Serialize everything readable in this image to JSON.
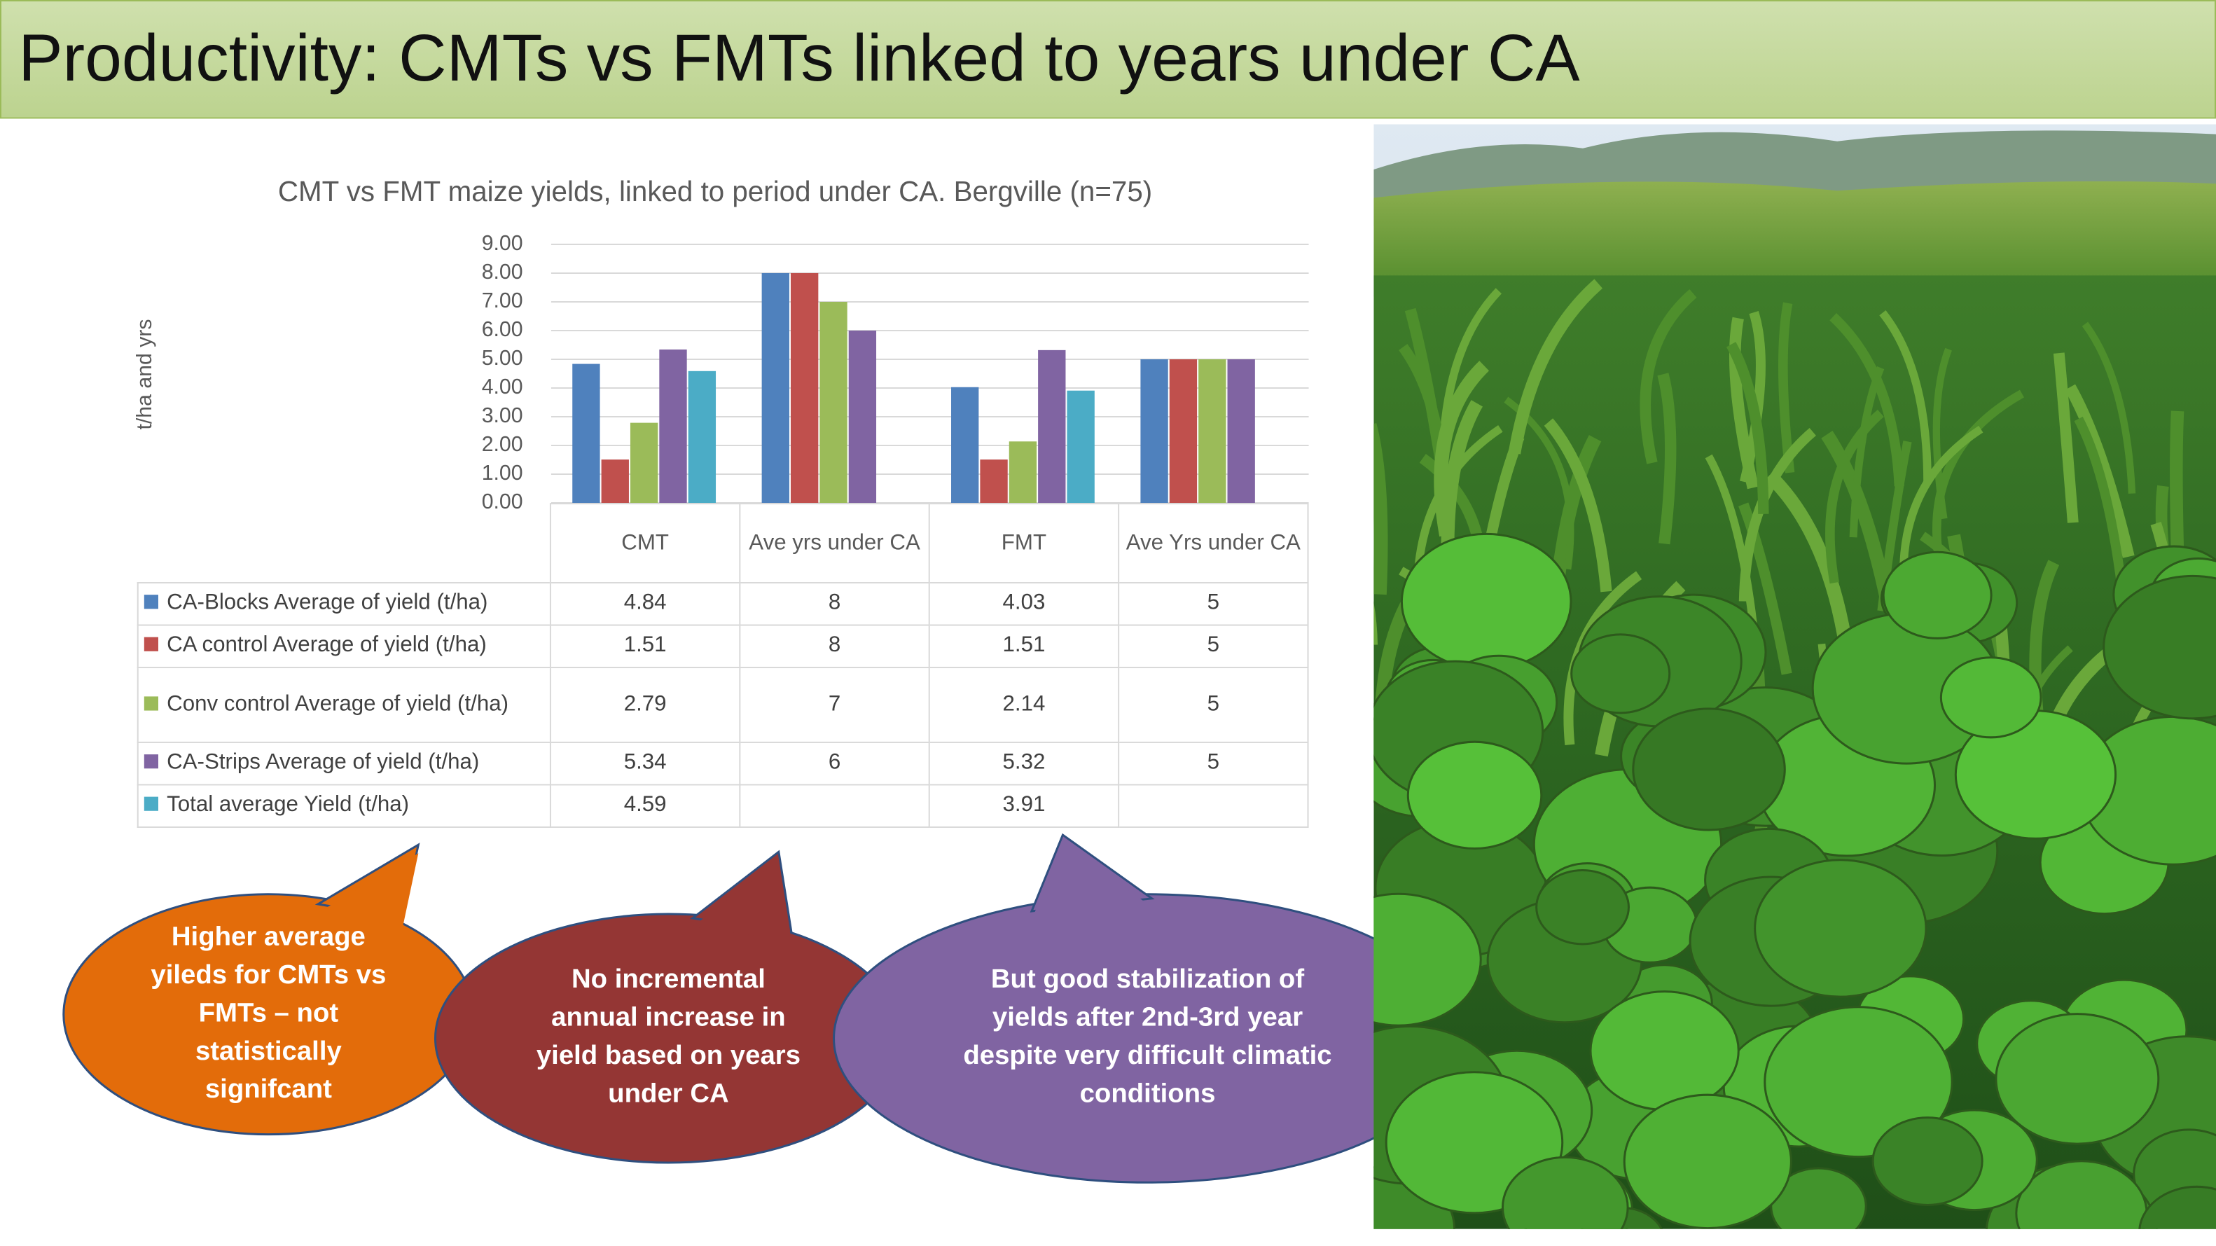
{
  "slide": {
    "title": "Productivity: CMTs vs FMTs linked to years under CA"
  },
  "chart_data": {
    "type": "bar",
    "title": "CMT vs FMT maize yields, linked to period under CA. Bergville (n=75)",
    "y_label": "t/ha and yrs",
    "categories": [
      "CMT",
      "Ave yrs under CA",
      "FMT",
      "Ave Yrs under CA"
    ],
    "series": [
      {
        "name": "CA-Blocks Average of yield (t/ha)",
        "color": "#4f81bd",
        "values": [
          4.84,
          8,
          4.03,
          5
        ]
      },
      {
        "name": "CA control Average of yield (t/ha)",
        "color": "#c0504d",
        "values": [
          1.51,
          8,
          1.51,
          5
        ]
      },
      {
        "name": "Conv control Average of yield (t/ha)",
        "color": "#9bbb59",
        "values": [
          2.79,
          7,
          2.14,
          5
        ]
      },
      {
        "name": "CA-Strips Average of yield (t/ha)",
        "color": "#8064a2",
        "values": [
          5.34,
          6,
          5.32,
          5
        ]
      },
      {
        "name": "Total average Yield (t/ha)",
        "color": "#4bacc6",
        "values": [
          4.59,
          null,
          3.91,
          null
        ]
      }
    ],
    "ylim": [
      0,
      9
    ],
    "yticks": [
      {
        "value": 0,
        "label": "0.00"
      },
      {
        "value": 1,
        "label": "1.00"
      },
      {
        "value": 2,
        "label": "2.00"
      },
      {
        "value": 3,
        "label": "3.00"
      },
      {
        "value": 4,
        "label": "4.00"
      },
      {
        "value": 5,
        "label": "5.00"
      },
      {
        "value": 6,
        "label": "6.00"
      },
      {
        "value": 7,
        "label": "7.00"
      },
      {
        "value": 8,
        "label": "8.00"
      },
      {
        "value": 9,
        "label": "9.00"
      }
    ],
    "grid": true
  },
  "callouts": [
    {
      "lines": [
        "Higher average",
        "yileds for CMTs vs",
        "FMTs – not",
        "statistically",
        "signifcant"
      ]
    },
    {
      "lines": [
        "No incremental",
        "annual increase in",
        "yield based on years",
        "under CA"
      ]
    },
    {
      "lines": [
        "But good stabilization of",
        "yields after 2nd-3rd year",
        "despite very difficult climatic",
        "conditions"
      ]
    }
  ]
}
